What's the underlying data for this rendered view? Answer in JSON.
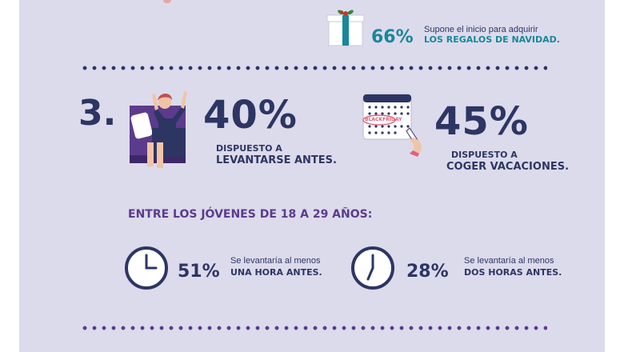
{
  "colors": {
    "background": "#dcdbec",
    "navy": "#2d3563",
    "teal": "#19879a",
    "purple": "#5c3b8c",
    "pink": "#e0607a"
  },
  "gifts": {
    "percent": "66%",
    "line1": "Supone el inicio para adquirir",
    "line2": "LOS REGALOS DE NAVIDAD."
  },
  "section": {
    "number": "3."
  },
  "wake": {
    "percent": "40%",
    "line1": "DISPUESTO A",
    "line2": "LEVANTARSE ANTES."
  },
  "vacation": {
    "percent": "45%",
    "line1": "DISPUESTO A",
    "line2": "COGER VACACIONES.",
    "calendar_label": "BLACKFRIDAY"
  },
  "youth": {
    "heading": "ENTRE LOS JÓVENES DE 18 A 29 AÑOS:",
    "one_hour": {
      "percent": "51%",
      "line1": "Se levantaría al menos",
      "line2": "UNA HORA ANTES."
    },
    "two_hours": {
      "percent": "28%",
      "line1": "Se levantaría al menos",
      "line2": "DOS HORAS ANTES."
    }
  },
  "icons": [
    "gift-icon",
    "person-in-bed-icon",
    "calendar-icon",
    "clock-icon"
  ]
}
